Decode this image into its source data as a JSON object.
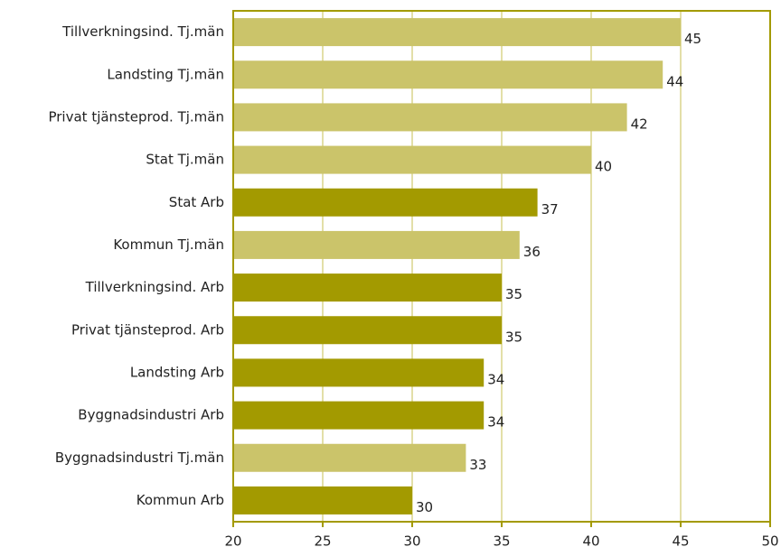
{
  "chart_data": {
    "type": "barh",
    "categories": [
      "Tillverkningsind. Tj.män",
      "Landsting Tj.män",
      "Privat tjänsteprod. Tj.män",
      "Stat Tj.män",
      "Stat Arb",
      "Kommun Tj.män",
      "Tillverkningsind. Arb",
      "Privat tjänsteprod. Arb",
      "Landsting Arb",
      "Byggnadsindustri Arb",
      "Byggnadsindustri Tj.män",
      "Kommun Arb"
    ],
    "values": [
      45,
      44,
      42,
      40,
      37,
      36,
      35,
      35,
      34,
      34,
      33,
      30
    ],
    "colors": [
      "#cbc46a",
      "#cbc46a",
      "#cbc46a",
      "#cbc46a",
      "#a39a00",
      "#cbc46a",
      "#a39a00",
      "#a39a00",
      "#a39a00",
      "#a39a00",
      "#cbc46a",
      "#a39a00"
    ],
    "xlim": [
      20,
      50
    ],
    "xticks": [
      20,
      25,
      30,
      35,
      40,
      45,
      50
    ],
    "grid": true
  }
}
